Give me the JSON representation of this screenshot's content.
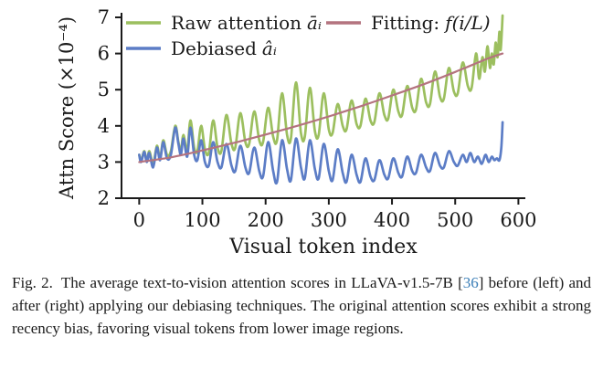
{
  "figure": {
    "caption": {
      "label": "Fig. 2.",
      "pre": "The average text-to-vision attention scores in LLaVA-v1.5-7B [",
      "cite": "36",
      "post": "] before (left) and after (right) applying our debiasing techniques. The original attention scores exhibit a strong recency bias, favoring visual tokens from lower image regions.",
      "cite_color": "#3c7fb8"
    }
  },
  "chart_data": {
    "type": "line",
    "title": "",
    "xlabel": "Visual token index",
    "ylabel": "Attn Score (×10⁻⁴)",
    "xlim": [
      -28,
      611
    ],
    "ylim": [
      2,
      7
    ],
    "x_ticks": [
      0,
      100,
      200,
      300,
      400,
      500,
      600
    ],
    "y_ticks": [
      2,
      3,
      4,
      5,
      6,
      7
    ],
    "grid": false,
    "legend_position": "upper-left-inside, no frame, two columns",
    "axis_color": "#1a1a1a",
    "legend": [
      {
        "text": "Raw attention",
        "math": "āᵢ",
        "color": "#9cbf5f"
      },
      {
        "text": "Debiased",
        "math": "âᵢ",
        "color": "#5c7dc6"
      },
      {
        "text": "Fitting:",
        "math": "f(i/L)",
        "color": "#b4737f"
      }
    ],
    "series": [
      {
        "name": "Raw attention āᵢ",
        "color": "#9cbf5f",
        "points": [
          [
            0,
            3.2
          ],
          [
            3,
            3.05
          ],
          [
            8,
            3.3
          ],
          [
            12,
            3.02
          ],
          [
            16,
            3.3
          ],
          [
            22,
            2.95
          ],
          [
            28,
            3.45
          ],
          [
            33,
            3.1
          ],
          [
            38,
            3.6
          ],
          [
            44,
            3.2
          ],
          [
            50,
            3.3
          ],
          [
            57,
            4.0
          ],
          [
            62,
            3.55
          ],
          [
            66,
            3.3
          ],
          [
            70,
            3.75
          ],
          [
            76,
            3.3
          ],
          [
            81,
            4.15
          ],
          [
            87,
            3.4
          ],
          [
            92,
            3.3
          ],
          [
            98,
            4.0
          ],
          [
            104,
            3.35
          ],
          [
            110,
            3.25
          ],
          [
            117,
            4.15
          ],
          [
            124,
            3.4
          ],
          [
            130,
            3.3
          ],
          [
            138,
            4.3
          ],
          [
            146,
            3.5
          ],
          [
            152,
            3.4
          ],
          [
            160,
            4.35
          ],
          [
            168,
            3.55
          ],
          [
            174,
            3.5
          ],
          [
            182,
            4.4
          ],
          [
            190,
            3.6
          ],
          [
            196,
            3.55
          ],
          [
            204,
            4.5
          ],
          [
            212,
            3.7
          ],
          [
            218,
            3.6
          ],
          [
            226,
            4.9
          ],
          [
            234,
            3.75
          ],
          [
            240,
            3.65
          ],
          [
            248,
            5.2
          ],
          [
            256,
            3.8
          ],
          [
            262,
            3.7
          ],
          [
            270,
            5.05
          ],
          [
            278,
            3.85
          ],
          [
            284,
            3.75
          ],
          [
            292,
            4.9
          ],
          [
            300,
            3.9
          ],
          [
            306,
            3.8
          ],
          [
            314,
            4.6
          ],
          [
            322,
            4.0
          ],
          [
            328,
            3.9
          ],
          [
            336,
            4.7
          ],
          [
            344,
            4.05
          ],
          [
            350,
            4.0
          ],
          [
            358,
            4.75
          ],
          [
            366,
            4.15
          ],
          [
            372,
            4.1
          ],
          [
            380,
            4.9
          ],
          [
            388,
            4.3
          ],
          [
            394,
            4.2
          ],
          [
            402,
            5.0
          ],
          [
            410,
            4.4
          ],
          [
            416,
            4.3
          ],
          [
            424,
            5.1
          ],
          [
            432,
            4.5
          ],
          [
            438,
            4.45
          ],
          [
            446,
            5.3
          ],
          [
            454,
            4.65
          ],
          [
            460,
            4.6
          ],
          [
            468,
            5.5
          ],
          [
            476,
            4.8
          ],
          [
            482,
            4.75
          ],
          [
            490,
            5.6
          ],
          [
            498,
            4.95
          ],
          [
            504,
            4.9
          ],
          [
            512,
            5.75
          ],
          [
            520,
            5.1
          ],
          [
            526,
            5.05
          ],
          [
            533,
            6.0
          ],
          [
            538,
            5.3
          ],
          [
            543,
            5.9
          ],
          [
            547,
            5.5
          ],
          [
            551,
            6.2
          ],
          [
            555,
            5.6
          ],
          [
            558,
            6.0
          ],
          [
            561,
            5.7
          ],
          [
            564,
            6.3
          ],
          [
            567,
            5.9
          ],
          [
            570,
            6.6
          ],
          [
            572,
            6.1
          ],
          [
            575,
            7.05
          ]
        ]
      },
      {
        "name": "Debiased âᵢ",
        "color": "#5c7dc6",
        "points": [
          [
            0,
            3.2
          ],
          [
            3,
            3.0
          ],
          [
            8,
            3.28
          ],
          [
            12,
            3.0
          ],
          [
            16,
            3.25
          ],
          [
            22,
            2.85
          ],
          [
            28,
            3.4
          ],
          [
            33,
            3.05
          ],
          [
            38,
            3.55
          ],
          [
            44,
            3.1
          ],
          [
            50,
            3.2
          ],
          [
            57,
            3.95
          ],
          [
            62,
            3.5
          ],
          [
            66,
            3.2
          ],
          [
            70,
            3.65
          ],
          [
            76,
            3.15
          ],
          [
            81,
            3.95
          ],
          [
            87,
            3.2
          ],
          [
            92,
            3.05
          ],
          [
            98,
            3.6
          ],
          [
            104,
            3.0
          ],
          [
            110,
            2.9
          ],
          [
            117,
            3.55
          ],
          [
            124,
            3.0
          ],
          [
            130,
            2.85
          ],
          [
            138,
            3.5
          ],
          [
            146,
            2.9
          ],
          [
            152,
            2.75
          ],
          [
            160,
            3.45
          ],
          [
            168,
            2.85
          ],
          [
            174,
            2.7
          ],
          [
            182,
            3.4
          ],
          [
            190,
            2.75
          ],
          [
            196,
            2.6
          ],
          [
            204,
            3.55
          ],
          [
            212,
            2.75
          ],
          [
            218,
            2.45
          ],
          [
            226,
            3.6
          ],
          [
            234,
            2.8
          ],
          [
            240,
            2.5
          ],
          [
            248,
            3.65
          ],
          [
            256,
            2.85
          ],
          [
            262,
            2.55
          ],
          [
            270,
            3.6
          ],
          [
            278,
            2.8
          ],
          [
            284,
            2.55
          ],
          [
            292,
            3.5
          ],
          [
            300,
            2.75
          ],
          [
            306,
            2.5
          ],
          [
            314,
            3.35
          ],
          [
            322,
            2.7
          ],
          [
            328,
            2.45
          ],
          [
            336,
            3.2
          ],
          [
            344,
            2.65
          ],
          [
            350,
            2.45
          ],
          [
            358,
            3.1
          ],
          [
            366,
            2.6
          ],
          [
            372,
            2.5
          ],
          [
            380,
            3.05
          ],
          [
            388,
            2.65
          ],
          [
            394,
            2.55
          ],
          [
            402,
            3.1
          ],
          [
            410,
            2.7
          ],
          [
            416,
            2.6
          ],
          [
            424,
            3.15
          ],
          [
            432,
            2.75
          ],
          [
            438,
            2.7
          ],
          [
            446,
            3.2
          ],
          [
            454,
            2.85
          ],
          [
            460,
            2.75
          ],
          [
            468,
            3.25
          ],
          [
            476,
            2.9
          ],
          [
            482,
            2.85
          ],
          [
            490,
            3.3
          ],
          [
            498,
            3.0
          ],
          [
            504,
            2.9
          ],
          [
            512,
            3.2
          ],
          [
            518,
            3.0
          ],
          [
            524,
            3.25
          ],
          [
            530,
            3.0
          ],
          [
            536,
            3.15
          ],
          [
            542,
            2.95
          ],
          [
            548,
            3.2
          ],
          [
            553,
            3.0
          ],
          [
            558,
            3.15
          ],
          [
            562,
            3.05
          ],
          [
            566,
            3.1
          ],
          [
            570,
            3.05
          ],
          [
            573,
            3.4
          ],
          [
            575,
            4.1
          ]
        ]
      },
      {
        "name": "Fitting: f(i/L)",
        "color": "#b4737f",
        "points": [
          [
            0,
            3.0
          ],
          [
            50,
            3.13
          ],
          [
            100,
            3.32
          ],
          [
            150,
            3.53
          ],
          [
            200,
            3.76
          ],
          [
            250,
            4.0
          ],
          [
            300,
            4.26
          ],
          [
            350,
            4.54
          ],
          [
            400,
            4.84
          ],
          [
            450,
            5.15
          ],
          [
            500,
            5.49
          ],
          [
            550,
            5.85
          ],
          [
            575,
            6.0
          ]
        ]
      }
    ]
  }
}
